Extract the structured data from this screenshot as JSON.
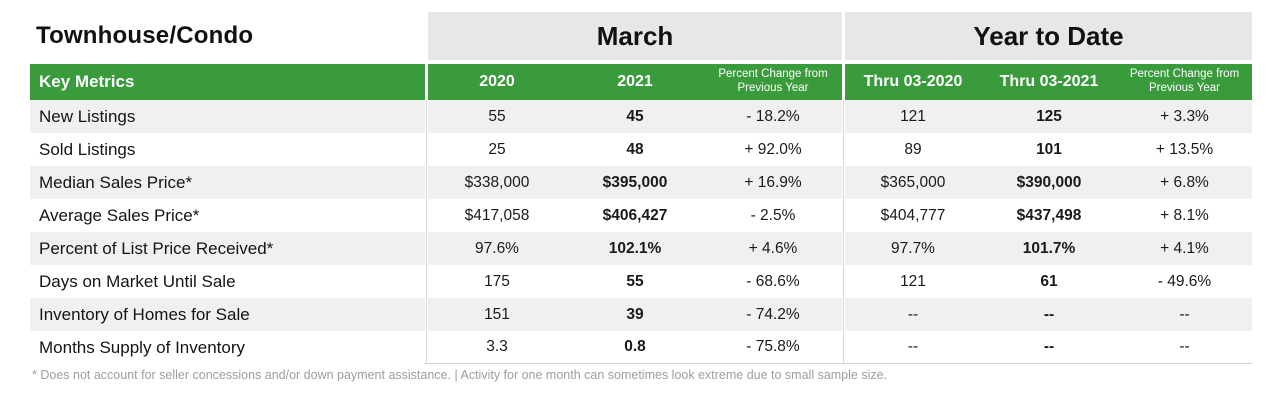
{
  "title": "Townhouse/Condo",
  "column_groups": {
    "march": "March",
    "ytd": "Year to Date"
  },
  "header": {
    "key_metrics": "Key Metrics",
    "march": [
      "2020",
      "2021",
      "Percent Change from Previous Year"
    ],
    "ytd": [
      "Thru 03-2020",
      "Thru 03-2021",
      "Percent Change from Previous Year"
    ]
  },
  "rows": [
    {
      "metric": "New Listings",
      "m2020": "55",
      "m2021": "45",
      "m_pct": "- 18.2%",
      "y2020": "121",
      "y2021": "125",
      "y_pct": "+ 3.3%"
    },
    {
      "metric": "Sold Listings",
      "m2020": "25",
      "m2021": "48",
      "m_pct": "+ 92.0%",
      "y2020": "89",
      "y2021": "101",
      "y_pct": "+ 13.5%"
    },
    {
      "metric": "Median Sales Price*",
      "m2020": "$338,000",
      "m2021": "$395,000",
      "m_pct": "+ 16.9%",
      "y2020": "$365,000",
      "y2021": "$390,000",
      "y_pct": "+ 6.8%"
    },
    {
      "metric": "Average Sales Price*",
      "m2020": "$417,058",
      "m2021": "$406,427",
      "m_pct": "- 2.5%",
      "y2020": "$404,777",
      "y2021": "$437,498",
      "y_pct": "+ 8.1%"
    },
    {
      "metric": "Percent of List Price Received*",
      "m2020": "97.6%",
      "m2021": "102.1%",
      "m_pct": "+ 4.6%",
      "y2020": "97.7%",
      "y2021": "101.7%",
      "y_pct": "+ 4.1%"
    },
    {
      "metric": "Days on Market Until Sale",
      "m2020": "175",
      "m2021": "55",
      "m_pct": "- 68.6%",
      "y2020": "121",
      "y2021": "61",
      "y_pct": "- 49.6%"
    },
    {
      "metric": "Inventory of Homes for Sale",
      "m2020": "151",
      "m2021": "39",
      "m_pct": "- 74.2%",
      "y2020": "--",
      "y2021": "--",
      "y_pct": "--"
    },
    {
      "metric": "Months Supply of Inventory",
      "m2020": "3.3",
      "m2021": "0.8",
      "m_pct": "- 75.8%",
      "y2020": "--",
      "y2021": "--",
      "y_pct": "--"
    }
  ],
  "footnote": "* Does not account for seller concessions and/or down payment assistance.  |  Activity for one month can sometimes look extreme due to small sample size.",
  "colors": {
    "header_green": "#3a9b3c",
    "group_header_gray": "#e7e7e7",
    "row_shade": "#f0f0f0",
    "footnote_gray": "#9e9e9e"
  },
  "chart_data": {
    "type": "table",
    "title": "Townhouse/Condo Key Metrics",
    "column_groups": [
      "March",
      "Year to Date"
    ],
    "columns": [
      "Key Metrics",
      "March 2020",
      "March 2021",
      "March Percent Change from Previous Year",
      "Thru 03-2020",
      "Thru 03-2021",
      "YTD Percent Change from Previous Year"
    ],
    "rows": [
      [
        "New Listings",
        55,
        45,
        "-18.2%",
        121,
        125,
        "+3.3%"
      ],
      [
        "Sold Listings",
        25,
        48,
        "+92.0%",
        89,
        101,
        "+13.5%"
      ],
      [
        "Median Sales Price*",
        "$338,000",
        "$395,000",
        "+16.9%",
        "$365,000",
        "$390,000",
        "+6.8%"
      ],
      [
        "Average Sales Price*",
        "$417,058",
        "$406,427",
        "-2.5%",
        "$404,777",
        "$437,498",
        "+8.1%"
      ],
      [
        "Percent of List Price Received*",
        "97.6%",
        "102.1%",
        "+4.6%",
        "97.7%",
        "101.7%",
        "+4.1%"
      ],
      [
        "Days on Market Until Sale",
        175,
        55,
        "-68.6%",
        121,
        61,
        "-49.6%"
      ],
      [
        "Inventory of Homes for Sale",
        151,
        39,
        "-74.2%",
        "--",
        "--",
        "--"
      ],
      [
        "Months Supply of Inventory",
        3.3,
        0.8,
        "-75.8%",
        "--",
        "--",
        "--"
      ]
    ]
  }
}
